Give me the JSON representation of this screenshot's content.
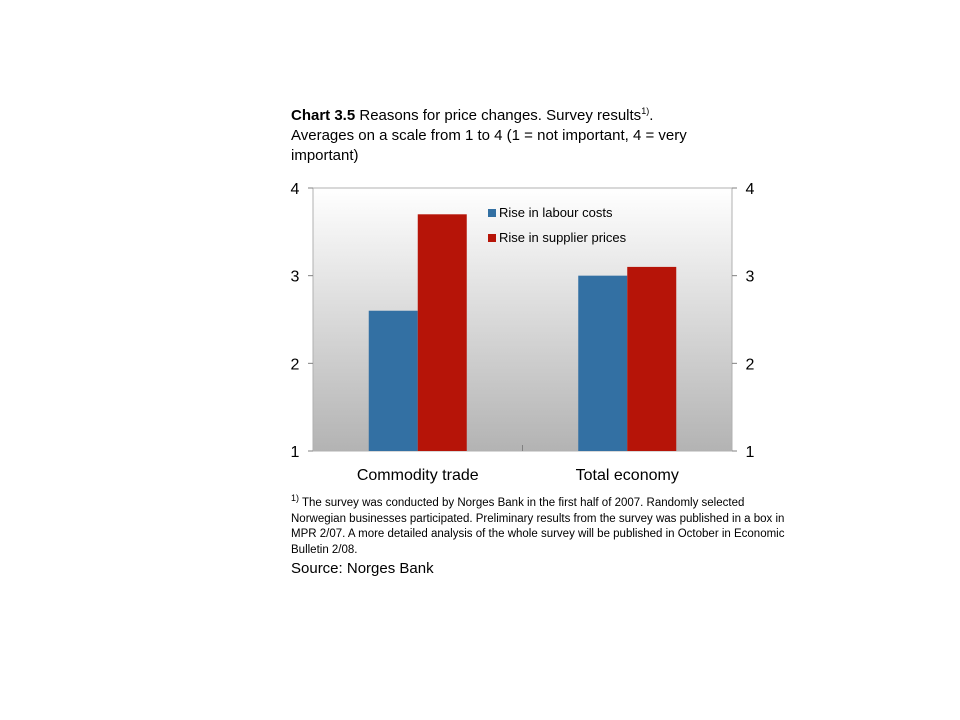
{
  "title": {
    "number": "Chart 3.5",
    "text": "Reasons for price changes. Survey results",
    "marker": "1)",
    "after_marker": ".",
    "line2": "Averages on a scale from 1 to 4 (1 = not important, 4 = very important)"
  },
  "chart_data": {
    "type": "bar",
    "categories": [
      "Commodity trade",
      "Total economy"
    ],
    "series": [
      {
        "name": "Rise in labour costs",
        "values": [
          2.6,
          3.0
        ],
        "color": "#3370A3"
      },
      {
        "name": "Rise in supplier prices",
        "values": [
          3.7,
          3.1
        ],
        "color": "#B61408"
      }
    ],
    "ylim": [
      1,
      4
    ],
    "yticks": [
      "1",
      "2",
      "3",
      "4"
    ],
    "y_axis_right_ticks": [
      "1",
      "2",
      "3",
      "4"
    ],
    "legend_position": "top-right",
    "grid": false,
    "plot_background": "gray gradient"
  },
  "footnote": {
    "marker": "1)",
    "text": "The  survey was conducted by Norges Bank in the first half of 2007. Randomly selected Norwegian businesses participated. Preliminary results from the survey was published in a box in MPR 2/07. A more detailed  analysis of the whole survey will be published in October in Economic Bulletin 2/08."
  },
  "source": "Source: Norges Bank"
}
